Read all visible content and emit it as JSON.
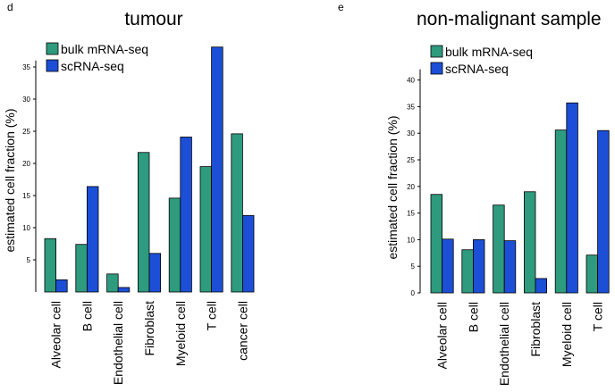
{
  "colors": {
    "bulk": "#2e9a7e",
    "sc": "#1c4fd6"
  },
  "chart_data": [
    {
      "type": "bar",
      "panel": "d",
      "title": "tumour",
      "ylabel": "estimated cell fraction (%)",
      "ylim": [
        0,
        36
      ],
      "yticks": [
        5,
        10,
        15,
        20,
        25,
        30,
        35
      ],
      "categories": [
        "Alveolar cell",
        "B cell",
        "Endothelial cell",
        "Fibroblast",
        "Myeloid cell",
        "T cell",
        "cancer cell"
      ],
      "legend_position": "top-left",
      "series": [
        {
          "name": "bulk mRNA-seq",
          "values": [
            8.3,
            7.4,
            2.8,
            21.7,
            14.6,
            19.5,
            24.6
          ]
        },
        {
          "name": "scRNA-seq",
          "values": [
            1.9,
            16.4,
            0.7,
            6.0,
            24.1,
            38.1,
            11.9
          ]
        }
      ]
    },
    {
      "type": "bar",
      "panel": "e",
      "title": "non-malignant sample",
      "ylabel": "estimated cell fraction (%)",
      "ylim": [
        0,
        42
      ],
      "yticks": [
        0,
        5,
        10,
        15,
        20,
        25,
        30,
        35,
        40
      ],
      "categories": [
        "Alveolar cell",
        "B cell",
        "Endothelial cell",
        "Fibroblast",
        "Myeloid cell",
        "T cell"
      ],
      "legend_position": "top-left",
      "series": [
        {
          "name": "bulk mRNA-seq",
          "values": [
            18.5,
            8.1,
            16.5,
            19.0,
            30.6,
            7.1
          ]
        },
        {
          "name": "scRNA-seq",
          "values": [
            10.1,
            10.0,
            9.8,
            2.7,
            35.7,
            30.5
          ]
        }
      ]
    }
  ]
}
